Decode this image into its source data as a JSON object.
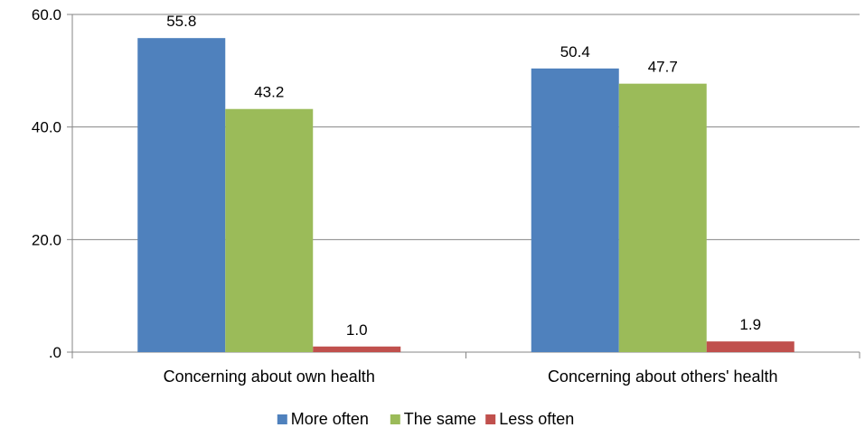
{
  "chart_data": {
    "type": "bar",
    "categories": [
      "Concerning about own health",
      "Concerning about others' health"
    ],
    "series": [
      {
        "name": "More often",
        "values": [
          55.8,
          50.4
        ],
        "color": "#4f81bd"
      },
      {
        "name": "The same",
        "values": [
          43.2,
          47.7
        ],
        "color": "#9bbb59"
      },
      {
        "name": "Less often",
        "values": [
          1.0,
          1.9
        ],
        "color": "#c0504d"
      }
    ],
    "data_labels": [
      [
        "55.8",
        "50.4"
      ],
      [
        "43.2",
        "47.7"
      ],
      [
        "1.0",
        "1.9"
      ]
    ],
    "y_ticks": [
      {
        "value": 0,
        "label": ".0"
      },
      {
        "value": 20,
        "label": "20.0"
      },
      {
        "value": 40,
        "label": "40.0"
      },
      {
        "value": 60,
        "label": "60.0"
      }
    ],
    "ylim": [
      0,
      60
    ],
    "grid": true,
    "legend_position": "bottom",
    "title": "",
    "xlabel": "",
    "ylabel": ""
  }
}
